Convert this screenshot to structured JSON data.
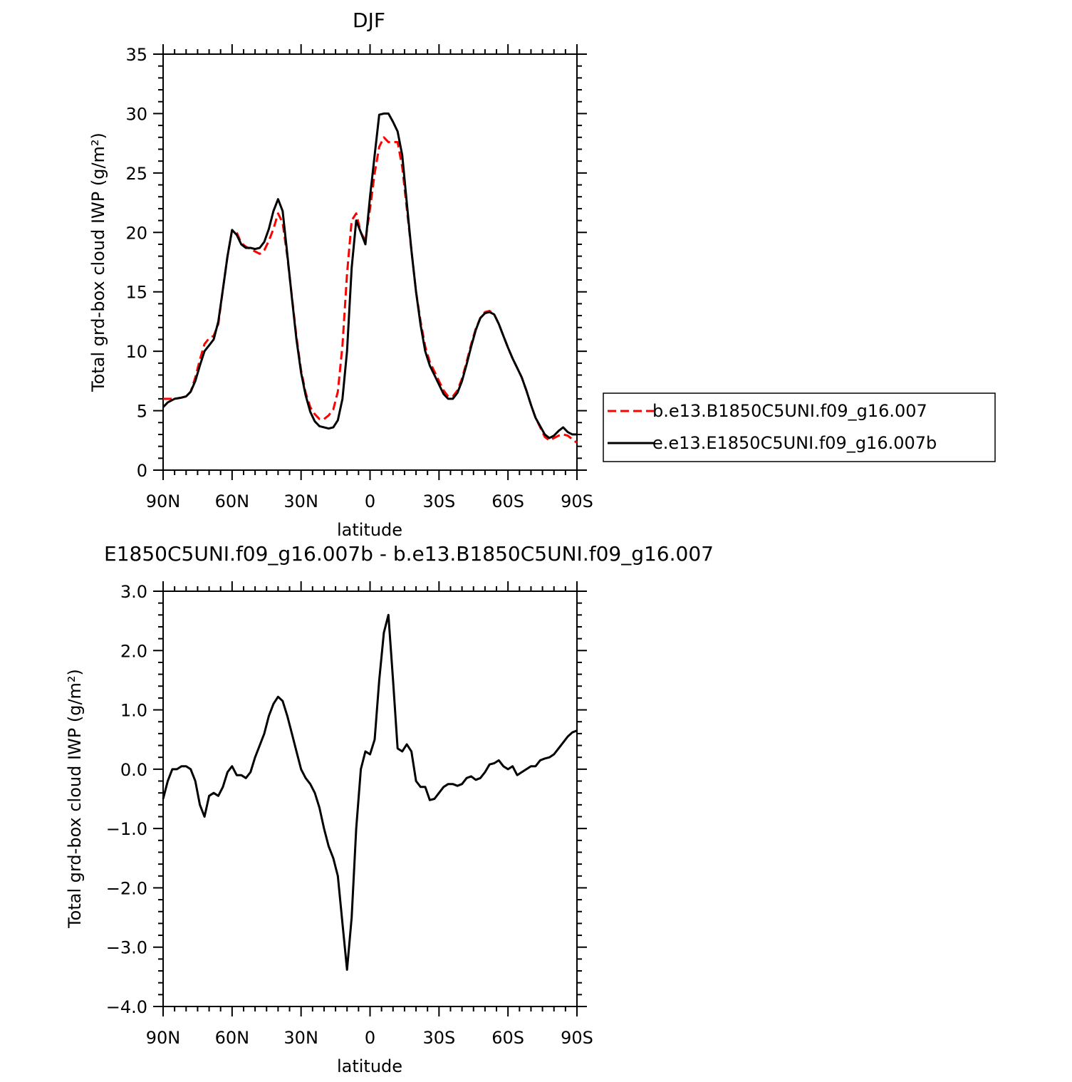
{
  "chart_data": [
    {
      "type": "line",
      "title": "DJF",
      "xlabel": "latitude",
      "ylabel": "Total grd-box cloud IWP (g/m²)",
      "xlim": [
        90,
        -90
      ],
      "ylim": [
        0,
        35
      ],
      "x_ticks": [
        {
          "value": 90,
          "label": "90N"
        },
        {
          "value": 60,
          "label": "60N"
        },
        {
          "value": 30,
          "label": "30N"
        },
        {
          "value": 0,
          "label": "0"
        },
        {
          "value": -30,
          "label": "30S"
        },
        {
          "value": -60,
          "label": "60S"
        },
        {
          "value": -90,
          "label": "90S"
        }
      ],
      "y_ticks": [
        {
          "value": 0,
          "label": "0"
        },
        {
          "value": 5,
          "label": "5"
        },
        {
          "value": 10,
          "label": "10"
        },
        {
          "value": 15,
          "label": "15"
        },
        {
          "value": 20,
          "label": "20"
        },
        {
          "value": 25,
          "label": "25"
        },
        {
          "value": 30,
          "label": "30"
        },
        {
          "value": 35,
          "label": "35"
        }
      ],
      "legend_position": "right",
      "series": [
        {
          "name": "b.e13.B1850C5UNI.f09_g16.007",
          "color": "#ff0000",
          "dash": true,
          "x": [
            90,
            88,
            85,
            82,
            80,
            78,
            76,
            74,
            72,
            70,
            68,
            66,
            64,
            62,
            60,
            58,
            56,
            54,
            52,
            50,
            48,
            46,
            44,
            42,
            40,
            38,
            36,
            34,
            32,
            30,
            28,
            26,
            24,
            22,
            20,
            18,
            16,
            14,
            12,
            10,
            8,
            6,
            4,
            2,
            0,
            -2,
            -4,
            -6,
            -8,
            -10,
            -12,
            -14,
            -16,
            -18,
            -20,
            -22,
            -24,
            -26,
            -28,
            -30,
            -32,
            -34,
            -36,
            -38,
            -40,
            -42,
            -44,
            -46,
            -48,
            -50,
            -52,
            -54,
            -56,
            -58,
            -60,
            -62,
            -64,
            -66,
            -68,
            -70,
            -72,
            -74,
            -76,
            -78,
            -80,
            -82,
            -84,
            -86,
            -88,
            -90
          ],
          "y": [
            6.0,
            6.0,
            6.0,
            6.1,
            6.2,
            6.6,
            7.8,
            9.3,
            10.6,
            11.1,
            11.3,
            12.3,
            15.2,
            18.0,
            20.2,
            20.0,
            19.1,
            18.8,
            18.6,
            18.4,
            18.2,
            18.5,
            19.3,
            20.3,
            21.6,
            20.8,
            18.0,
            14.6,
            11.2,
            8.4,
            6.5,
            5.3,
            4.7,
            4.3,
            4.3,
            4.6,
            5.1,
            6.6,
            10.5,
            16.5,
            21.0,
            21.6,
            20.0,
            19.3,
            22.0,
            25.0,
            27.2,
            28.0,
            27.6,
            27.6,
            27.6,
            25.5,
            22.0,
            18.5,
            15.0,
            12.5,
            10.4,
            9.1,
            8.3,
            7.5,
            6.7,
            6.2,
            6.2,
            6.7,
            7.7,
            9.1,
            10.6,
            11.9,
            12.8,
            13.3,
            13.4,
            13.1,
            12.3,
            11.3,
            10.3,
            9.4,
            8.6,
            7.8,
            6.7,
            5.5,
            4.4,
            3.6,
            2.8,
            2.5,
            2.7,
            2.9,
            3.0,
            2.9,
            2.6,
            2.3
          ]
        },
        {
          "name": "e.e13.E1850C5UNI.f09_g16.007b",
          "color": "#000000",
          "dash": false,
          "x": [
            90,
            88,
            85,
            82,
            80,
            78,
            76,
            74,
            72,
            70,
            68,
            66,
            64,
            62,
            60,
            58,
            56,
            54,
            52,
            50,
            48,
            46,
            44,
            42,
            40,
            38,
            36,
            34,
            32,
            30,
            28,
            26,
            24,
            22,
            20,
            18,
            16,
            14,
            12,
            10,
            8,
            6,
            4,
            2,
            0,
            -2,
            -4,
            -6,
            -8,
            -10,
            -12,
            -14,
            -16,
            -18,
            -20,
            -22,
            -24,
            -26,
            -28,
            -30,
            -32,
            -34,
            -36,
            -38,
            -40,
            -42,
            -44,
            -46,
            -48,
            -50,
            -52,
            -54,
            -56,
            -58,
            -60,
            -62,
            -64,
            -66,
            -68,
            -70,
            -72,
            -74,
            -76,
            -78,
            -80,
            -82,
            -84,
            -86,
            -88,
            -90
          ],
          "y": [
            5.3,
            5.7,
            6.0,
            6.1,
            6.2,
            6.6,
            7.5,
            8.8,
            10.0,
            10.5,
            11.0,
            12.5,
            15.2,
            18.0,
            20.2,
            19.8,
            19.0,
            18.7,
            18.7,
            18.6,
            18.7,
            19.2,
            20.3,
            21.8,
            22.8,
            21.8,
            18.2,
            14.5,
            11.0,
            8.2,
            6.3,
            4.9,
            4.1,
            3.7,
            3.6,
            3.5,
            3.6,
            4.2,
            6.0,
            10.0,
            17.0,
            21.0,
            20.0,
            19.0,
            23.0,
            26.5,
            29.9,
            30.0,
            30.0,
            29.3,
            28.5,
            26.5,
            22.5,
            18.5,
            15.0,
            12.2,
            10.0,
            8.8,
            8.0,
            7.2,
            6.4,
            6.0,
            6.0,
            6.5,
            7.5,
            8.9,
            10.4,
            11.8,
            12.8,
            13.2,
            13.3,
            13.1,
            12.3,
            11.3,
            10.3,
            9.4,
            8.6,
            7.8,
            6.7,
            5.5,
            4.4,
            3.7,
            3.0,
            2.7,
            2.9,
            3.3,
            3.6,
            3.2,
            3.0,
            3.0
          ]
        }
      ]
    },
    {
      "type": "line",
      "title": "E1850C5UNI.f09_g16.007b - b.e13.B1850C5UNI.f09_g16.007",
      "xlabel": "latitude",
      "ylabel": "Total grd-box cloud IWP (g/m²)",
      "xlim": [
        90,
        -90
      ],
      "ylim": [
        -4.0,
        3.0
      ],
      "x_ticks": [
        {
          "value": 90,
          "label": "90N"
        },
        {
          "value": 60,
          "label": "60N"
        },
        {
          "value": 30,
          "label": "30N"
        },
        {
          "value": 0,
          "label": "0"
        },
        {
          "value": -30,
          "label": "30S"
        },
        {
          "value": -60,
          "label": "60S"
        },
        {
          "value": -90,
          "label": "90S"
        }
      ],
      "y_ticks": [
        {
          "value": -4.0,
          "label": "−4.0"
        },
        {
          "value": -3.0,
          "label": "−3.0"
        },
        {
          "value": -2.0,
          "label": "−2.0"
        },
        {
          "value": -1.0,
          "label": "−1.0"
        },
        {
          "value": 0.0,
          "label": "0.0"
        },
        {
          "value": 1.0,
          "label": "1.0"
        },
        {
          "value": 2.0,
          "label": "2.0"
        },
        {
          "value": 3.0,
          "label": "3.0"
        }
      ],
      "series": [
        {
          "name": "",
          "color": "#000000",
          "dash": false,
          "x": [
            90,
            88,
            86,
            84,
            82,
            80,
            78,
            76,
            74,
            72,
            70,
            68,
            66,
            64,
            62,
            60,
            58,
            56,
            54,
            52,
            50,
            48,
            46,
            44,
            42,
            40,
            38,
            36,
            34,
            32,
            30,
            28,
            26,
            24,
            22,
            20,
            18,
            16,
            14,
            12,
            10,
            8,
            6,
            4,
            2,
            0,
            -2,
            -4,
            -6,
            -8,
            -10,
            -12,
            -14,
            -16,
            -18,
            -20,
            -22,
            -24,
            -26,
            -28,
            -30,
            -32,
            -34,
            -36,
            -38,
            -40,
            -42,
            -44,
            -46,
            -48,
            -50,
            -52,
            -54,
            -56,
            -58,
            -60,
            -62,
            -64,
            -66,
            -68,
            -70,
            -72,
            -74,
            -76,
            -78,
            -80,
            -82,
            -84,
            -86,
            -88,
            -90
          ],
          "y": [
            -0.5,
            -0.2,
            0.0,
            0.0,
            0.05,
            0.05,
            0.0,
            -0.2,
            -0.6,
            -0.8,
            -0.45,
            -0.4,
            -0.45,
            -0.3,
            -0.05,
            0.05,
            -0.1,
            -0.1,
            -0.15,
            -0.05,
            0.2,
            0.4,
            0.6,
            0.9,
            1.1,
            1.22,
            1.15,
            0.9,
            0.6,
            0.3,
            0.0,
            -0.15,
            -0.25,
            -0.4,
            -0.65,
            -1.0,
            -1.3,
            -1.5,
            -1.8,
            -2.6,
            -3.38,
            -2.5,
            -1.0,
            0.0,
            0.3,
            0.25,
            0.5,
            1.5,
            2.3,
            2.6,
            1.5,
            0.35,
            0.3,
            0.42,
            0.3,
            -0.2,
            -0.3,
            -0.3,
            -0.52,
            -0.5,
            -0.4,
            -0.3,
            -0.25,
            -0.25,
            -0.28,
            -0.25,
            -0.15,
            -0.12,
            -0.18,
            -0.15,
            -0.05,
            0.08,
            0.1,
            0.15,
            0.05,
            0.0,
            0.05,
            -0.1,
            -0.05,
            0.0,
            0.05,
            0.05,
            0.15,
            0.18,
            0.2,
            0.25,
            0.35,
            0.45,
            0.55,
            0.62,
            0.65
          ]
        }
      ]
    }
  ]
}
